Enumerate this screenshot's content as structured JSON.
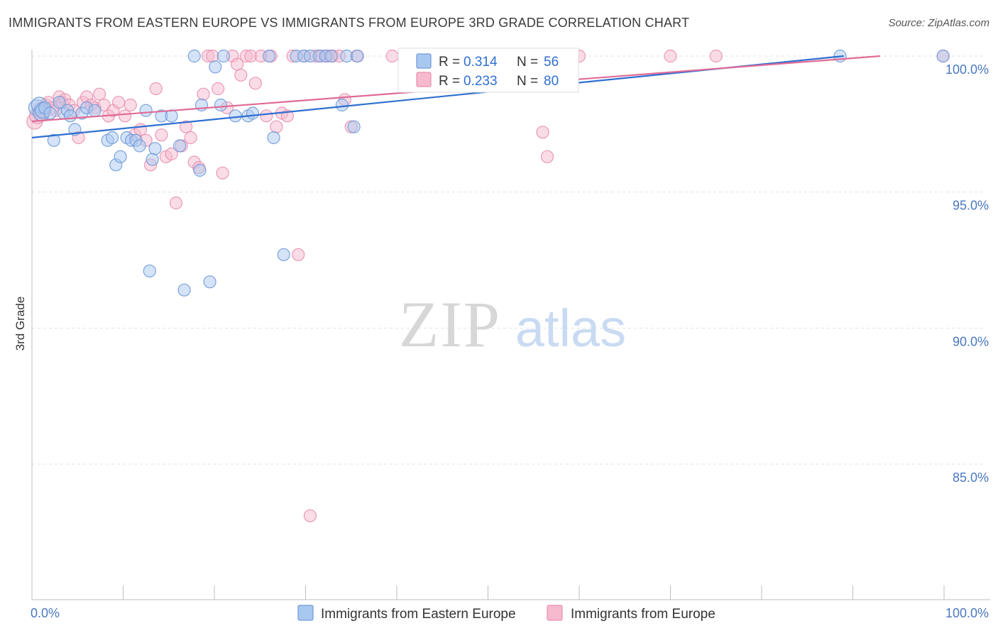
{
  "header": {
    "title": "IMMIGRANTS FROM EASTERN EUROPE VS IMMIGRANTS FROM EUROPE 3RD GRADE CORRELATION CHART",
    "source": "Source: ZipAtlas.com"
  },
  "watermark": {
    "zip": "ZIP",
    "atlas": "atlas"
  },
  "legend": {
    "r_label": "R =",
    "n_label": "N =",
    "series": [
      {
        "r": "0.314",
        "n": "56"
      },
      {
        "r": "0.233",
        "n": "80"
      }
    ]
  },
  "colors": {
    "blue_fill": "#a9c8f0",
    "blue_stroke": "#6f9ad8",
    "blue_line": "#2f6fd0",
    "pink_fill": "#f6b9cd",
    "pink_stroke": "#e98fb0",
    "pink_line": "#e06b96",
    "grid": "#e3e3e3",
    "axis_label": "#4a78c0"
  },
  "chart_data": {
    "type": "scatter",
    "title": "IMMIGRANTS FROM EASTERN EUROPE VS IMMIGRANTS FROM EUROPE 3RD GRADE CORRELATION CHART",
    "xlabel": "",
    "ylabel": "3rd Grade",
    "xlim": [
      0,
      100
    ],
    "ylim": [
      80.5,
      100.6
    ],
    "x_ticks": [
      0,
      10,
      20,
      30,
      40,
      50,
      60,
      70,
      80,
      90,
      100
    ],
    "x_tick_labels": [
      {
        "value": 0,
        "label": "0.0%"
      },
      {
        "value": 100,
        "label": "100.0%"
      }
    ],
    "y_tick_labels": [
      {
        "value": 100,
        "label": "100.0%"
      },
      {
        "value": 95,
        "label": "95.0%"
      },
      {
        "value": 90,
        "label": "90.0%"
      },
      {
        "value": 85,
        "label": "85.0%"
      }
    ],
    "series": [
      {
        "name": "Immigrants from Eastern Europe",
        "r": 0.314,
        "n": 56,
        "trend": {
          "x0": 0,
          "y0": 97.0,
          "x1": 89,
          "y1": 100.0
        },
        "points": [
          [
            0.5,
            98.1
          ],
          [
            0.8,
            98.2
          ],
          [
            1.0,
            97.9
          ],
          [
            1.2,
            98.0
          ],
          [
            1.4,
            98.1
          ],
          [
            2.0,
            97.9
          ],
          [
            2.4,
            96.9
          ],
          [
            3.0,
            98.3
          ],
          [
            3.5,
            97.9
          ],
          [
            3.9,
            98.0
          ],
          [
            4.2,
            97.8
          ],
          [
            4.7,
            97.3
          ],
          [
            5.5,
            97.9
          ],
          [
            6.0,
            98.1
          ],
          [
            6.9,
            98.0
          ],
          [
            8.3,
            96.9
          ],
          [
            8.8,
            97.0
          ],
          [
            9.2,
            96.0
          ],
          [
            9.7,
            96.3
          ],
          [
            10.4,
            97.0
          ],
          [
            10.9,
            96.9
          ],
          [
            11.4,
            96.9
          ],
          [
            11.8,
            96.7
          ],
          [
            12.5,
            98.0
          ],
          [
            12.9,
            92.1
          ],
          [
            13.2,
            96.2
          ],
          [
            13.5,
            96.6
          ],
          [
            14.2,
            97.8
          ],
          [
            15.3,
            97.8
          ],
          [
            16.2,
            96.7
          ],
          [
            16.7,
            91.4
          ],
          [
            17.8,
            100.0
          ],
          [
            18.4,
            95.8
          ],
          [
            18.6,
            98.2
          ],
          [
            19.5,
            91.7
          ],
          [
            20.1,
            99.6
          ],
          [
            20.7,
            98.2
          ],
          [
            21.0,
            100.0
          ],
          [
            22.3,
            97.8
          ],
          [
            23.7,
            97.8
          ],
          [
            24.2,
            97.9
          ],
          [
            26.0,
            100.0
          ],
          [
            26.5,
            97.0
          ],
          [
            27.6,
            92.7
          ],
          [
            29.0,
            100.0
          ],
          [
            29.8,
            100.0
          ],
          [
            30.5,
            100.0
          ],
          [
            31.5,
            100.0
          ],
          [
            32.2,
            100.0
          ],
          [
            32.8,
            100.0
          ],
          [
            34.0,
            98.2
          ],
          [
            34.5,
            100.0
          ],
          [
            35.3,
            97.4
          ],
          [
            35.7,
            100.0
          ],
          [
            88.6,
            100.0
          ],
          [
            99.9,
            100.0
          ]
        ]
      },
      {
        "name": "Immigrants from Europe",
        "r": 0.233,
        "n": 80,
        "trend": {
          "x0": 0,
          "y0": 97.6,
          "x1": 93,
          "y1": 100.0
        },
        "points": [
          [
            0.3,
            97.6
          ],
          [
            0.6,
            97.8
          ],
          [
            0.9,
            98.0
          ],
          [
            1.1,
            97.9
          ],
          [
            1.5,
            98.2
          ],
          [
            1.8,
            98.3
          ],
          [
            2.2,
            98.1
          ],
          [
            2.6,
            98.0
          ],
          [
            3.0,
            98.5
          ],
          [
            3.3,
            98.3
          ],
          [
            3.6,
            98.4
          ],
          [
            4.1,
            98.2
          ],
          [
            4.6,
            98.0
          ],
          [
            5.1,
            97.0
          ],
          [
            5.6,
            98.3
          ],
          [
            6.0,
            98.5
          ],
          [
            6.5,
            98.2
          ],
          [
            6.9,
            98.1
          ],
          [
            7.4,
            98.6
          ],
          [
            7.9,
            98.2
          ],
          [
            8.4,
            97.8
          ],
          [
            8.9,
            98.0
          ],
          [
            9.5,
            98.3
          ],
          [
            10.2,
            97.8
          ],
          [
            10.8,
            98.2
          ],
          [
            11.3,
            97.1
          ],
          [
            11.9,
            97.3
          ],
          [
            12.5,
            96.9
          ],
          [
            13.0,
            96.0
          ],
          [
            13.6,
            98.8
          ],
          [
            14.2,
            97.1
          ],
          [
            14.7,
            96.3
          ],
          [
            15.3,
            96.4
          ],
          [
            15.8,
            94.6
          ],
          [
            16.4,
            96.7
          ],
          [
            16.9,
            97.4
          ],
          [
            17.4,
            97.0
          ],
          [
            17.8,
            96.1
          ],
          [
            18.3,
            95.9
          ],
          [
            18.8,
            98.6
          ],
          [
            19.3,
            100.0
          ],
          [
            19.8,
            100.0
          ],
          [
            20.4,
            98.8
          ],
          [
            20.9,
            95.7
          ],
          [
            21.4,
            98.1
          ],
          [
            22.0,
            100.0
          ],
          [
            22.5,
            99.7
          ],
          [
            22.9,
            99.3
          ],
          [
            23.5,
            100.0
          ],
          [
            24.0,
            100.0
          ],
          [
            24.5,
            99.0
          ],
          [
            25.1,
            100.0
          ],
          [
            25.7,
            97.8
          ],
          [
            26.2,
            100.0
          ],
          [
            26.8,
            97.4
          ],
          [
            27.4,
            97.9
          ],
          [
            28.0,
            97.8
          ],
          [
            28.6,
            100.0
          ],
          [
            29.2,
            92.7
          ],
          [
            29.9,
            100.0
          ],
          [
            30.5,
            83.1
          ],
          [
            31.1,
            100.0
          ],
          [
            31.7,
            100.0
          ],
          [
            32.4,
            100.0
          ],
          [
            33.0,
            100.0
          ],
          [
            33.7,
            100.0
          ],
          [
            34.3,
            98.4
          ],
          [
            35.0,
            97.4
          ],
          [
            35.6,
            100.0
          ],
          [
            39.5,
            100.0
          ],
          [
            41.0,
            100.0
          ],
          [
            44.0,
            100.0
          ],
          [
            47.5,
            100.0
          ],
          [
            52.8,
            100.0
          ],
          [
            56.0,
            97.2
          ],
          [
            56.5,
            96.3
          ],
          [
            60.0,
            100.0
          ],
          [
            70.0,
            100.0
          ],
          [
            75.0,
            100.0
          ],
          [
            99.9,
            100.0
          ]
        ]
      }
    ]
  },
  "bottom_legend": {
    "items": [
      {
        "label": "Immigrants from Eastern Europe"
      },
      {
        "label": "Immigrants from Europe"
      }
    ]
  }
}
